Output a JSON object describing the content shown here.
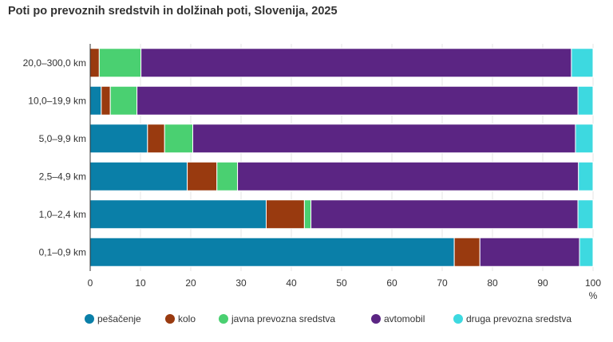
{
  "chart_data": {
    "type": "bar",
    "orientation": "horizontal",
    "stacked": true,
    "title": "Poti po prevoznih sredstvih in dolžinah poti, Slovenija, 2025",
    "unit": "%",
    "xlim": [
      0,
      100
    ],
    "x_ticks": [
      "0",
      "10",
      "20",
      "30",
      "40",
      "50",
      "60",
      "70",
      "80",
      "90",
      "100"
    ],
    "categories": [
      "20,0–300,0 km",
      "10,0–19,9 km",
      "5,0–9,9 km",
      "2,5–4,9 km",
      "1,0–2,4 km",
      "0,1–0,9 km"
    ],
    "series": [
      {
        "name": "pešačenje",
        "color": "#0a7fa8",
        "values": [
          0,
          2.2,
          11.4,
          19.3,
          35.0,
          72.4
        ]
      },
      {
        "name": "kolo",
        "color": "#993a0f",
        "values": [
          1.8,
          1.8,
          3.4,
          5.9,
          7.6,
          5.1
        ]
      },
      {
        "name": "javna prevozna sredstva",
        "color": "#4ad071",
        "values": [
          8.3,
          5.3,
          5.6,
          4.1,
          1.3,
          0
        ]
      },
      {
        "name": "avtomobil",
        "color": "#5b2583",
        "values": [
          85.6,
          87.7,
          76.1,
          67.8,
          53.1,
          19.8
        ]
      },
      {
        "name": "druga prevozna sredstva",
        "color": "#3dd9e0",
        "values": [
          4.3,
          3.0,
          3.5,
          2.9,
          3.0,
          2.7
        ]
      }
    ],
    "grid": true,
    "legend_position": "bottom"
  }
}
